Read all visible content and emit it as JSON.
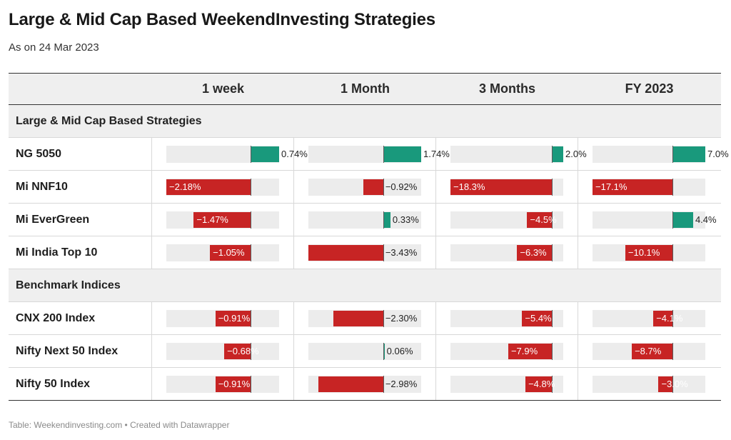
{
  "header": {
    "title": "Large & Mid Cap Based WeekendInvesting Strategies",
    "subtitle": "As on 24 Mar 2023"
  },
  "footer": {
    "source": "Table: Weekendinvesting.com • Created with Datawrapper"
  },
  "colors": {
    "positive": "#19997c",
    "negative": "#c72424",
    "track": "#ececec",
    "header_bg": "#efefef"
  },
  "chart_data": {
    "type": "table",
    "columns": [
      "1 week",
      "1 Month",
      "3 Months",
      "FY 2023"
    ],
    "column_domains": [
      [
        -2.18,
        0.74
      ],
      [
        -3.43,
        1.74
      ],
      [
        -18.3,
        2.0
      ],
      [
        -17.1,
        7.0
      ]
    ],
    "sections": [
      {
        "name": "Large & Mid Cap Based Strategies",
        "rows": [
          {
            "name": "NG 5050",
            "values": [
              0.74,
              1.74,
              2.0,
              7.0
            ],
            "labels": [
              "0.74%",
              "1.74%",
              "2.0%",
              "7.0%"
            ]
          },
          {
            "name": "Mi NNF10",
            "values": [
              -2.18,
              -0.92,
              -18.3,
              -17.1
            ],
            "labels": [
              "−2.18%",
              "−0.92%",
              "−18.3%",
              "−17.1%"
            ]
          },
          {
            "name": "Mi EverGreen",
            "values": [
              -1.47,
              0.33,
              -4.5,
              4.4
            ],
            "labels": [
              "−1.47%",
              "0.33%",
              "−4.5%",
              "4.4%"
            ]
          },
          {
            "name": "Mi India Top 10",
            "values": [
              -1.05,
              -3.43,
              -6.3,
              -10.1
            ],
            "labels": [
              "−1.05%",
              "−3.43%",
              "−6.3%",
              "−10.1%"
            ]
          }
        ]
      },
      {
        "name": "Benchmark Indices",
        "rows": [
          {
            "name": "CNX 200 Index",
            "values": [
              -0.91,
              -2.3,
              -5.4,
              -4.1
            ],
            "labels": [
              "−0.91%",
              "−2.30%",
              "−5.4%",
              "−4.1%"
            ]
          },
          {
            "name": "Nifty Next 50 Index",
            "values": [
              -0.68,
              0.06,
              -7.9,
              -8.7
            ],
            "labels": [
              "−0.68%",
              "0.06%",
              "−7.9%",
              "−8.7%"
            ]
          },
          {
            "name": "Nifty 50 Index",
            "values": [
              -0.91,
              -2.98,
              -4.8,
              -3.0
            ],
            "labels": [
              "−0.91%",
              "−2.98%",
              "−4.8%",
              "−3.0%"
            ]
          }
        ]
      }
    ]
  }
}
